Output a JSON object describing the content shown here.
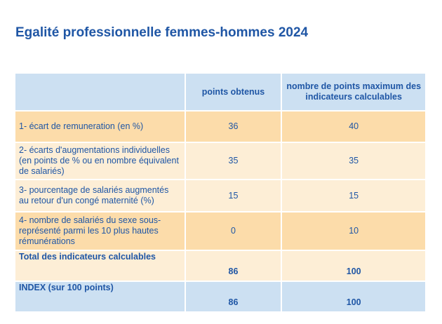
{
  "title": "Egalité professionnelle femmes-hommes 2024",
  "table": {
    "headers": [
      "",
      "points obtenus",
      "nombre de points maximum des indicateurs calculables"
    ],
    "rows": [
      {
        "label": "1- écart de remuneration (en %)",
        "points": "36",
        "max": "40"
      },
      {
        "label": "2- écarts d'augmentations individuelles (en points de % ou en nombre équivalent de salariés)",
        "points": "35",
        "max": "35"
      },
      {
        "label": "3- pourcentage de salariés augmentés au retour d'un congé maternité (%)",
        "points": "15",
        "max": "15"
      },
      {
        "label": "4- nombre de salariés du sexe sous-représenté parmi les 10 plus hautes rémunérations",
        "points": "0",
        "max": "10"
      }
    ],
    "total": {
      "label": "Total des indicateurs calculables",
      "points": "86",
      "max": "100"
    },
    "index": {
      "label": "INDEX (sur 100 points)",
      "points": "86",
      "max": "100"
    }
  }
}
